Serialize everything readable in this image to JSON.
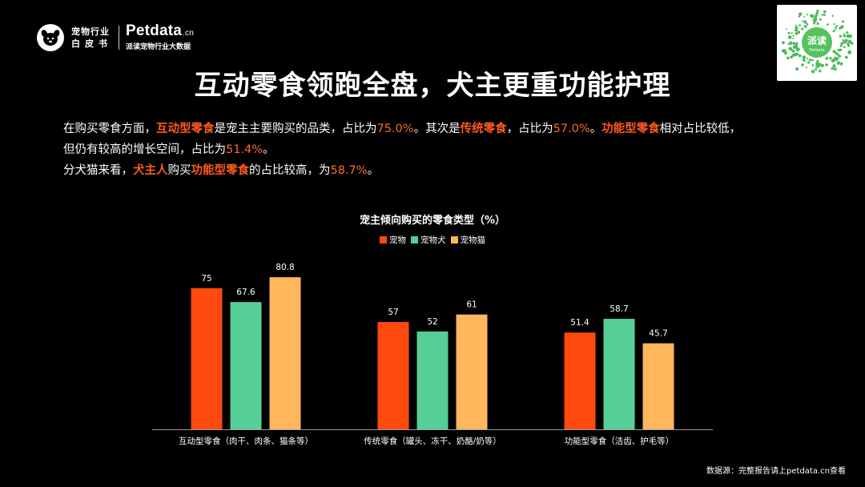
{
  "header": {
    "logo_cn_line1": "宠物行业",
    "logo_cn_line2": "白皮书",
    "brand_name": "Petdata",
    "brand_suffix": ".cn",
    "brand_sub": "派读宠物行业大数据",
    "qr_label": "派读",
    "qr_sub": "Petdata"
  },
  "title": "互动零食领跑全盘，犬主更重功能护理",
  "description": {
    "line1": [
      {
        "t": "在购买零食方面，",
        "s": ""
      },
      {
        "t": "互动型零食",
        "s": "hl"
      },
      {
        "t": "是宠主主要购买的品类，占比为",
        "s": ""
      },
      {
        "t": "75.0%",
        "s": "num"
      },
      {
        "t": "。其次是",
        "s": ""
      },
      {
        "t": "传统零食",
        "s": "hl"
      },
      {
        "t": "，占比为",
        "s": ""
      },
      {
        "t": "57.0%",
        "s": "num"
      },
      {
        "t": "。",
        "s": ""
      },
      {
        "t": "功能型零食",
        "s": "hl"
      },
      {
        "t": "相对占比较低，",
        "s": ""
      }
    ],
    "line2": [
      {
        "t": "但仍有较高的增长空间，占比为",
        "s": ""
      },
      {
        "t": "51.4%",
        "s": "num"
      },
      {
        "t": "。",
        "s": ""
      }
    ],
    "line3": [
      {
        "t": "分犬猫来看，",
        "s": ""
      },
      {
        "t": "犬主人",
        "s": "hl"
      },
      {
        "t": "购买",
        "s": ""
      },
      {
        "t": "功能型零食",
        "s": "hl"
      },
      {
        "t": "的占比较高，为",
        "s": ""
      },
      {
        "t": "58.7%",
        "s": "num"
      },
      {
        "t": "。",
        "s": ""
      }
    ]
  },
  "chart_data": {
    "type": "bar",
    "title": "宠主倾向购买的零食类型（%）",
    "categories": [
      "互动型零食（肉干、肉条、猫条等）",
      "传统零食（罐头、冻干、奶酪/奶等）",
      "功能型零食（洁齿、护毛等）"
    ],
    "series": [
      {
        "name": "宠物",
        "values": [
          75,
          57,
          51.4
        ],
        "color": "#ff4a0f"
      },
      {
        "name": "宠物犬",
        "values": [
          67.6,
          52,
          58.7
        ],
        "color": "#55cf97"
      },
      {
        "name": "宠物猫",
        "values": [
          80.8,
          61,
          45.7
        ],
        "color": "#ffb65c"
      }
    ],
    "value_labels": [
      [
        "75",
        "57",
        "51.4"
      ],
      [
        "67.6",
        "52",
        "58.7"
      ],
      [
        "80.8",
        "61",
        "45.7"
      ]
    ],
    "ylim": [
      0,
      100
    ],
    "grid": false,
    "legend_position": "top-center",
    "xlabel": "",
    "ylabel": ""
  },
  "source": "数据源：完整报告请上petdata.cn查看"
}
